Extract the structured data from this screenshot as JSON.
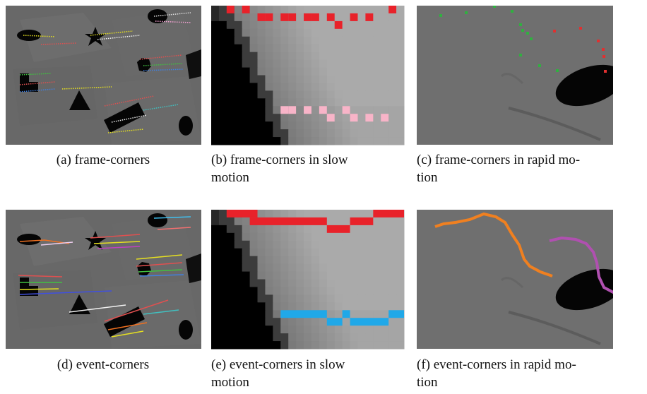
{
  "figure": {
    "panels": [
      {
        "lines": [
          "(a) frame-corners"
        ]
      },
      {
        "lines": [
          "(b) frame-corners in slow",
          "motion"
        ]
      },
      {
        "lines": [
          "(c) frame-corners in rapid mo-",
          "tion"
        ]
      },
      {
        "lines": [
          "(d) event-corners"
        ]
      },
      {
        "lines": [
          "(e) event-corners in slow",
          "motion"
        ]
      },
      {
        "lines": [
          "(f) event-corners in rapid mo-",
          "tion"
        ]
      }
    ]
  }
}
